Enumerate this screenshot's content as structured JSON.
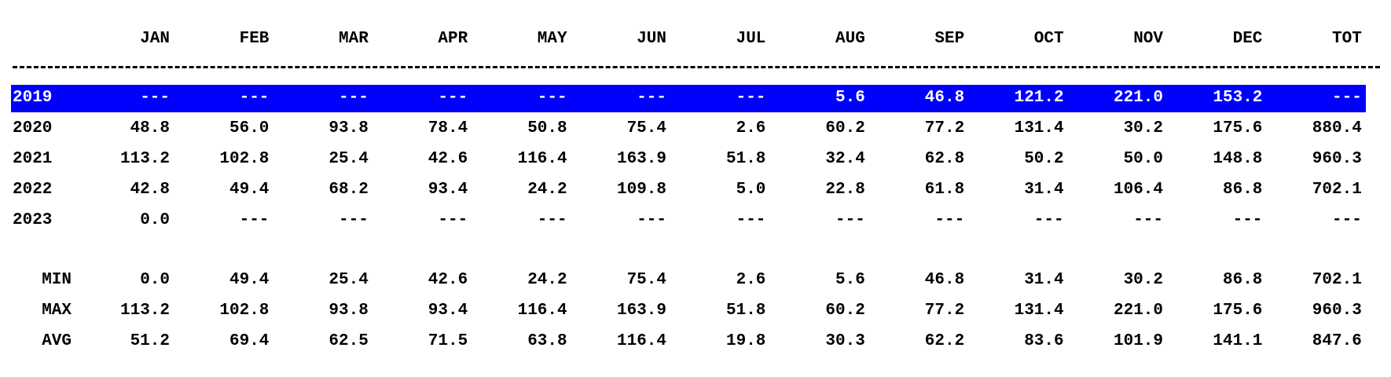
{
  "table": {
    "columns": [
      "JAN",
      "FEB",
      "MAR",
      "APR",
      "MAY",
      "JUN",
      "JUL",
      "AUG",
      "SEP",
      "OCT",
      "NOV",
      "DEC",
      "TOT"
    ],
    "rows": [
      [
        "2019",
        "---",
        "---",
        "---",
        "---",
        "---",
        "---",
        "---",
        "5.6",
        "46.8",
        "121.2",
        "221.0",
        "153.2",
        "---"
      ],
      [
        "2020",
        "48.8",
        "56.0",
        "93.8",
        "78.4",
        "50.8",
        "75.4",
        "2.6",
        "60.2",
        "77.2",
        "131.4",
        "30.2",
        "175.6",
        "880.4"
      ],
      [
        "2021",
        "113.2",
        "102.8",
        "25.4",
        "42.6",
        "116.4",
        "163.9",
        "51.8",
        "32.4",
        "62.8",
        "50.2",
        "50.0",
        "148.8",
        "960.3"
      ],
      [
        "2022",
        "42.8",
        "49.4",
        "68.2",
        "93.4",
        "24.2",
        "109.8",
        "5.0",
        "22.8",
        "61.8",
        "31.4",
        "106.4",
        "86.8",
        "702.1"
      ],
      [
        "2023",
        "0.0",
        "---",
        "---",
        "---",
        "---",
        "---",
        "---",
        "---",
        "---",
        "---",
        "---",
        "---",
        "---"
      ]
    ],
    "summary": [
      [
        "MIN",
        "0.0",
        "49.4",
        "25.4",
        "42.6",
        "24.2",
        "75.4",
        "2.6",
        "5.6",
        "46.8",
        "31.4",
        "30.2",
        "86.8",
        "702.1"
      ],
      [
        "MAX",
        "113.2",
        "102.8",
        "93.8",
        "93.4",
        "116.4",
        "163.9",
        "51.8",
        "60.2",
        "77.2",
        "131.4",
        "221.0",
        "175.6",
        "960.3"
      ],
      [
        "AVG",
        "51.2",
        "69.4",
        "62.5",
        "71.5",
        "63.8",
        "116.4",
        "19.8",
        "30.3",
        "62.2",
        "83.6",
        "101.9",
        "141.1",
        "847.6"
      ]
    ]
  }
}
